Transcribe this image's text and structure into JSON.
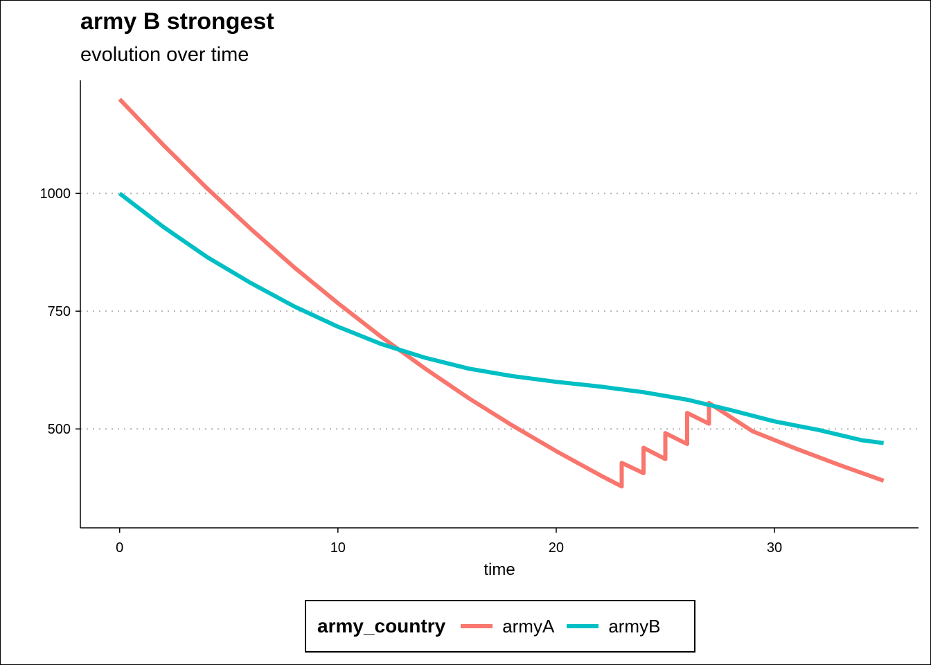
{
  "title": "army B strongest",
  "subtitle": "evolution over time",
  "chart_data": {
    "type": "line",
    "xlabel": "time",
    "ylabel": "",
    "xlim": [
      -1.8,
      36.6
    ],
    "ylim": [
      290,
      1240
    ],
    "x_ticks": [
      0,
      10,
      20,
      30
    ],
    "y_ticks": [
      500,
      750,
      1000
    ],
    "grid": "horizontal dotted at y ticks",
    "legend_title": "army_country",
    "legend_position": "bottom",
    "series": [
      {
        "name": "armyA",
        "color": "#F8766D",
        "points": [
          [
            0,
            1200
          ],
          [
            2,
            1103
          ],
          [
            4,
            1011
          ],
          [
            6,
            925
          ],
          [
            8,
            843
          ],
          [
            10,
            767
          ],
          [
            12,
            695
          ],
          [
            14,
            628
          ],
          [
            16,
            565
          ],
          [
            18,
            507
          ],
          [
            20,
            453
          ],
          [
            22,
            402
          ],
          [
            23,
            378
          ],
          [
            23,
            428
          ],
          [
            24,
            406
          ],
          [
            24,
            460
          ],
          [
            25,
            436
          ],
          [
            25,
            491
          ],
          [
            26,
            468
          ],
          [
            26,
            534
          ],
          [
            27,
            511
          ],
          [
            27,
            555
          ],
          [
            29,
            495
          ],
          [
            31,
            458
          ],
          [
            33,
            423
          ],
          [
            35,
            390
          ]
        ]
      },
      {
        "name": "armyB",
        "color": "#00BFC4",
        "points": [
          [
            0,
            1000
          ],
          [
            2,
            929
          ],
          [
            4,
            865
          ],
          [
            6,
            810
          ],
          [
            8,
            760
          ],
          [
            10,
            717
          ],
          [
            12,
            680
          ],
          [
            14,
            651
          ],
          [
            16,
            628
          ],
          [
            18,
            612
          ],
          [
            20,
            600
          ],
          [
            22,
            590
          ],
          [
            24,
            578
          ],
          [
            26,
            562
          ],
          [
            28,
            540
          ],
          [
            30,
            516
          ],
          [
            32,
            498
          ],
          [
            34,
            476
          ],
          [
            35,
            470
          ]
        ]
      }
    ]
  }
}
